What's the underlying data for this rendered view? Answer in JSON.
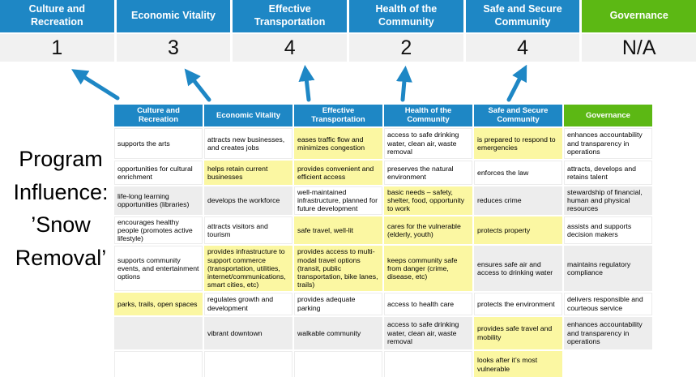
{
  "title": "Program\nInfluence:\n’Snow\nRemoval’",
  "colors": {
    "header_blue": "#1E87C5",
    "header_green": "#5CB814",
    "highlight_yellow": "#FBF7A2",
    "row_gray": "#EDEDED",
    "score_band_gray": "#F1F1F1",
    "arrow_blue": "#1E87C5"
  },
  "scoreboard": {
    "columns": [
      {
        "label": "Culture and Recreation",
        "score": "1",
        "style": "blue"
      },
      {
        "label": "Economic Vitality",
        "score": "3",
        "style": "blue"
      },
      {
        "label": "Effective Transportation",
        "score": "4",
        "style": "blue"
      },
      {
        "label": "Health of the Community",
        "score": "2",
        "style": "blue"
      },
      {
        "label": "Safe and Secure Community",
        "score": "4",
        "style": "blue"
      },
      {
        "label": "Governance",
        "score": "N/A",
        "style": "green"
      }
    ]
  },
  "matrix": {
    "headers": [
      {
        "label": "Culture and Recreation",
        "style": "blue"
      },
      {
        "label": "Economic Vitality",
        "style": "blue"
      },
      {
        "label": "Effective Transportation",
        "style": "blue"
      },
      {
        "label": "Health of the Community",
        "style": "blue"
      },
      {
        "label": "Safe and Secure Community",
        "style": "blue"
      },
      {
        "label": "Governance",
        "style": "green"
      }
    ],
    "rows": [
      [
        {
          "text": "supports the arts",
          "bg": "white"
        },
        {
          "text": "attracts new businesses, and creates jobs",
          "bg": "white"
        },
        {
          "text": "eases traffic flow and minimizes congestion",
          "bg": "yellow"
        },
        {
          "text": "access to safe drinking water, clean air, waste removal",
          "bg": "white"
        },
        {
          "text": "is prepared to respond to emergencies",
          "bg": "yellow"
        },
        {
          "text": "enhances accountability and transparency in operations",
          "bg": "white"
        }
      ],
      [
        {
          "text": "opportunities for cultural enrichment",
          "bg": "white"
        },
        {
          "text": "helps retain current businesses",
          "bg": "yellow"
        },
        {
          "text": "provides convenient and efficient access",
          "bg": "yellow"
        },
        {
          "text": "preserves the natural environment",
          "bg": "white"
        },
        {
          "text": "enforces the law",
          "bg": "white"
        },
        {
          "text": "attracts, develops and retains talent",
          "bg": "white"
        }
      ],
      [
        {
          "text": "life-long learning opportunities (libraries)",
          "bg": "gray"
        },
        {
          "text": "develops the workforce",
          "bg": "gray"
        },
        {
          "text": "well-maintained infrastructure, planned for future development",
          "bg": "white"
        },
        {
          "text": "basic needs – safety, shelter, food, opportunity to work",
          "bg": "yellow"
        },
        {
          "text": "reduces crime",
          "bg": "gray"
        },
        {
          "text": "stewardship of financial, human and physical resources",
          "bg": "gray"
        }
      ],
      [
        {
          "text": "encourages healthy people (promotes active lifestyle)",
          "bg": "white"
        },
        {
          "text": "attracts visitors and tourism",
          "bg": "white"
        },
        {
          "text": "safe travel, well-lit",
          "bg": "yellow"
        },
        {
          "text": "cares for the vulnerable (elderly, youth)",
          "bg": "yellow"
        },
        {
          "text": "protects property",
          "bg": "yellow"
        },
        {
          "text": "assists and supports decision makers",
          "bg": "white"
        }
      ],
      [
        {
          "text": "supports community events, and entertainment options",
          "bg": "white"
        },
        {
          "text": "provides infrastructure to support commerce (transportation, utilities, internet/communications, smart cities, etc)",
          "bg": "yellow"
        },
        {
          "text": "provides access to multi-modal travel options (transit, public transportation, bike lanes, trails)",
          "bg": "yellow"
        },
        {
          "text": "keeps community safe from danger (crime, disease, etc)",
          "bg": "yellow"
        },
        {
          "text": "ensures safe air and access to drinking water",
          "bg": "gray"
        },
        {
          "text": "maintains regulatory compliance",
          "bg": "gray"
        }
      ],
      [
        {
          "text": "parks, trails, open spaces",
          "bg": "yellow"
        },
        {
          "text": "regulates growth and development",
          "bg": "white"
        },
        {
          "text": "provides adequate parking",
          "bg": "white"
        },
        {
          "text": "access to health care",
          "bg": "white"
        },
        {
          "text": "protects the environment",
          "bg": "white"
        },
        {
          "text": "delivers responsible and courteous service",
          "bg": "white"
        }
      ],
      [
        {
          "text": "",
          "bg": "gray"
        },
        {
          "text": "vibrant downtown",
          "bg": "gray"
        },
        {
          "text": "walkable community",
          "bg": "gray"
        },
        {
          "text": "access to safe drinking water, clean air, waste removal",
          "bg": "gray"
        },
        {
          "text": "provides safe travel and mobility",
          "bg": "yellow"
        },
        {
          "text": "enhances accountability and transparency in operations",
          "bg": "gray"
        }
      ],
      [
        {
          "text": "",
          "bg": "white"
        },
        {
          "text": "",
          "bg": "white"
        },
        {
          "text": "",
          "bg": "white"
        },
        {
          "text": "",
          "bg": "white"
        },
        {
          "text": "looks after it’s most vulnerable",
          "bg": "yellow"
        },
        {
          "text": "",
          "bg": "none"
        }
      ]
    ]
  }
}
